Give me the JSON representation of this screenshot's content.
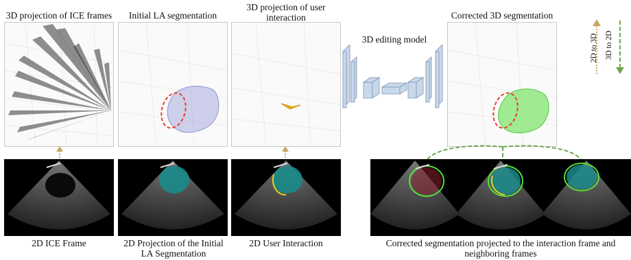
{
  "top_labels": {
    "proj_ice": "3D projection of ICE frames",
    "initial_seg": "Initial LA segmentation",
    "proj_user_line1": "3D projection of user",
    "proj_user_line2": "interaction",
    "editing_model": "3D editing model",
    "corrected_3d": "Corrected 3D segmentation"
  },
  "legend": {
    "d2_to_d3": "2D to 3D",
    "d3_to_d2": "3D to 2D",
    "d2_to_d3_color": "#c9a865",
    "d3_to_d2_color": "#6ea650"
  },
  "bottom_labels": {
    "ice_frame": "2D ICE Frame",
    "projection_line1": "2D Projection of the Initial",
    "projection_line2": "LA Segmentation",
    "user_interaction": "2D User Interaction",
    "corrected_line1": "Corrected segmentation projected to the interaction frame and",
    "corrected_line2": "neighboring frames"
  },
  "colors": {
    "seg_teal": "#1a8a8a",
    "seg_blue": "#a9acdc",
    "seg_green": "#6fe25a",
    "red_dash": "#e8412a",
    "user_yellow": "#e6b320",
    "net_block": "#c8d8ea"
  }
}
